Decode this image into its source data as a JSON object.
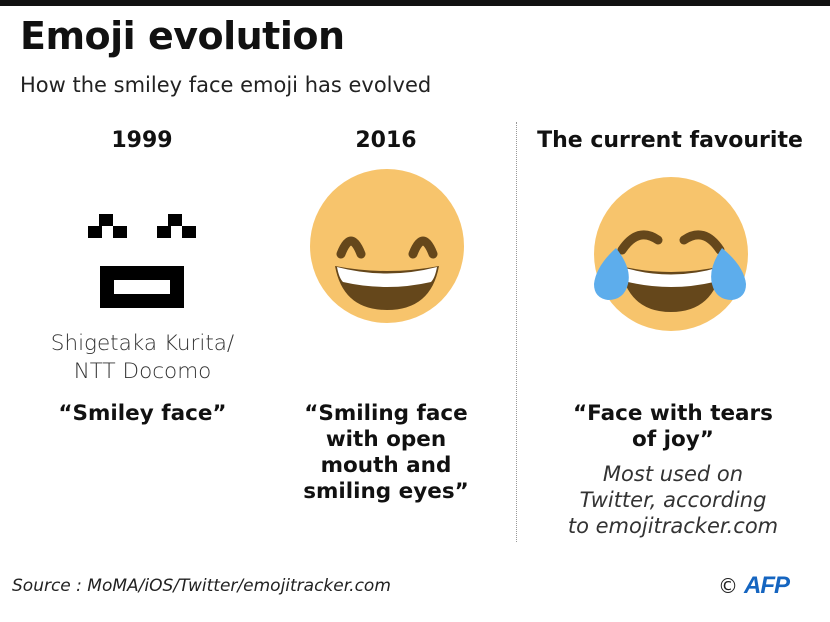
{
  "header": {
    "title": "Emoji evolution",
    "subtitle": "How the smiley face emoji has evolved"
  },
  "columns": [
    {
      "heading": "1999",
      "credit_line1": "Shigetaka Kurita/",
      "credit_line2": "NTT Docomo",
      "name_line1": "“Smiley face”",
      "emoji_icon": "pixel-smiley-icon"
    },
    {
      "heading": "2016",
      "name_line1": "“Smiling face",
      "name_line2": "with open",
      "name_line3": "mouth and",
      "name_line4": "smiling eyes”",
      "emoji_icon": "smiling-face-open-mouth-icon"
    },
    {
      "heading": "The current favourite",
      "name_line1": "“Face with tears",
      "name_line2": "of joy”",
      "note_line1": "Most used on",
      "note_line2": "Twitter, according",
      "note_line3": "to emojitracker.com",
      "emoji_icon": "face-with-tears-of-joy-icon"
    }
  ],
  "footer": {
    "source": "Source : MoMA/iOS/Twitter/emojitracker.com",
    "copyright_symbol": "©",
    "agency": "AFP"
  },
  "colors": {
    "emoji_yellow": "#F7C46C",
    "mouth_brown": "#65471B",
    "tear_blue": "#5DADEC",
    "afp_blue": "#1565C0"
  }
}
